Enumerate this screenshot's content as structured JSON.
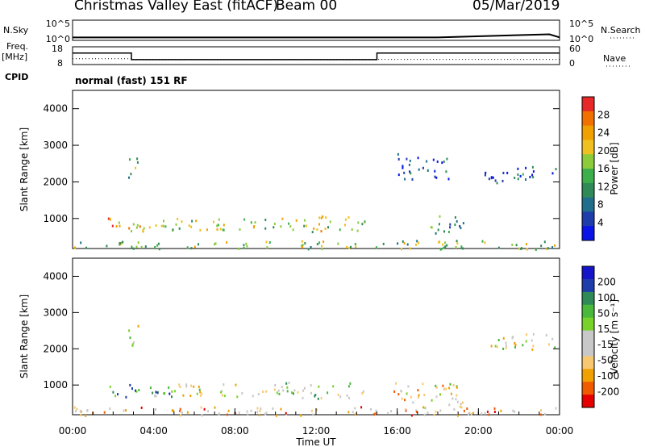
{
  "header": {
    "title": "Christmas Valley East (fitACF)",
    "beam": "Beam 00",
    "date": "05/Mar/2019"
  },
  "sidebar": {
    "nsky": "N.Sky",
    "nsearch": "N.Search",
    "freq": "Freq.",
    "freq_unit": "[MHz]",
    "nave": "Nave",
    "cpid": "CPID"
  },
  "cpid_text": "normal (fast) 151 RF",
  "colors": {
    "power": [
      "#0a14e6",
      "#1e3caa",
      "#1f6f8c",
      "#2e8b57",
      "#3caf4a",
      "#8ccc3a",
      "#f0c020",
      "#f0a000",
      "#f07000",
      "#e62828"
    ],
    "velocity": [
      "#e60000",
      "#f05a00",
      "#f0a000",
      "#f7c870",
      "#c8c8c8",
      "#c8c8c8",
      "#78d22a",
      "#4ab83a",
      "#2e8b57",
      "#1e3caa",
      "#1414c8"
    ]
  },
  "chart_data": [
    {
      "type": "line",
      "name": "noise",
      "left_label": "N.Sky",
      "right_label": "N.Search",
      "left_ticks": [
        "10^5",
        "10^0"
      ],
      "right_ticks": [
        "10^5",
        "10^0"
      ],
      "ylim": [
        0,
        5
      ],
      "x": [
        0,
        6,
        12,
        18,
        23.5,
        24
      ],
      "sky": [
        0.22,
        0.22,
        0.22,
        0.22,
        0.45,
        0.22
      ]
    },
    {
      "type": "line",
      "name": "frequency",
      "left_label": "Freq. [MHz]",
      "right_label": "Nave",
      "left_ticks": [
        "18",
        "8"
      ],
      "right_ticks": [
        "60",
        "0"
      ],
      "ylim": [
        8,
        18
      ],
      "x": [
        0,
        2.9,
        2.9,
        15,
        15,
        24
      ],
      "freq": [
        14.5,
        14.5,
        10.8,
        10.8,
        14.5,
        14.5
      ],
      "nave_x": [
        0,
        2.9,
        2.9,
        24
      ],
      "nave": [
        12.2,
        12.2,
        11.8,
        11.8
      ]
    },
    {
      "type": "heatmap",
      "name": "power",
      "ylabel": "Slant Range [km]",
      "colorbar_label": "Power [dB]",
      "colorbar_ticks": [
        "28",
        "24",
        "20",
        "16",
        "12",
        "8",
        "4"
      ],
      "yticks": [
        1000,
        2000,
        3000,
        4000
      ],
      "ylim": [
        180,
        4500
      ],
      "xlim": [
        0,
        24
      ],
      "regions": [
        {
          "t0": 1.6,
          "t1": 4.4,
          "r0": 650,
          "r1": 1050,
          "level": 0.75
        },
        {
          "t0": 4.4,
          "t1": 10.5,
          "r0": 700,
          "r1": 1050,
          "level": 0.55
        },
        {
          "t0": 10.5,
          "t1": 14.4,
          "r0": 650,
          "r1": 1100,
          "level": 0.6
        },
        {
          "t0": 2.7,
          "t1": 3.2,
          "r0": 2000,
          "r1": 2700,
          "level": 0.4
        },
        {
          "t0": 17.4,
          "t1": 19.3,
          "r0": 600,
          "r1": 1100,
          "level": 0.35
        },
        {
          "t0": 20.3,
          "t1": 23.8,
          "r0": 2000,
          "r1": 2450,
          "level": 0.2
        },
        {
          "t0": 16.0,
          "t1": 18.5,
          "r0": 2100,
          "r1": 2800,
          "level": 0.15
        },
        {
          "t0": 0.0,
          "t1": 24,
          "r0": 180,
          "r1": 420,
          "level": 0.5
        }
      ]
    },
    {
      "type": "heatmap",
      "name": "velocity",
      "ylabel": "Slant Range [km]",
      "xlabel": "Time UT",
      "colorbar_label": "Velocity [m s⁻¹]",
      "colorbar_ticks": [
        "200",
        "100",
        "50",
        "15",
        "-15",
        "-50",
        "-100",
        "-200"
      ],
      "xticks": [
        "00:00",
        "04:00",
        "08:00",
        "12:00",
        "16:00",
        "20:00",
        "00:00"
      ],
      "yticks": [
        1000,
        2000,
        3000,
        4000
      ],
      "ylim": [
        180,
        4500
      ],
      "xlim": [
        0,
        24
      ],
      "regions": [
        {
          "t0": 1.6,
          "t1": 5.0,
          "r0": 650,
          "r1": 1050,
          "level": 0.7
        },
        {
          "t0": 5.0,
          "t1": 10.0,
          "r0": 700,
          "r1": 1050,
          "level": 0.45
        },
        {
          "t0": 10.0,
          "t1": 14.4,
          "r0": 650,
          "r1": 1100,
          "level": 0.55
        },
        {
          "t0": 2.7,
          "t1": 3.2,
          "r0": 2000,
          "r1": 2700,
          "level": 0.45
        },
        {
          "t0": 15.8,
          "t1": 19.3,
          "r0": 400,
          "r1": 1100,
          "level": 0.4
        },
        {
          "t0": 20.3,
          "t1": 23.8,
          "r0": 2000,
          "r1": 2450,
          "level": 0.45
        },
        {
          "t0": 0.0,
          "t1": 24,
          "r0": 180,
          "r1": 420,
          "level": 0.3
        }
      ]
    }
  ]
}
